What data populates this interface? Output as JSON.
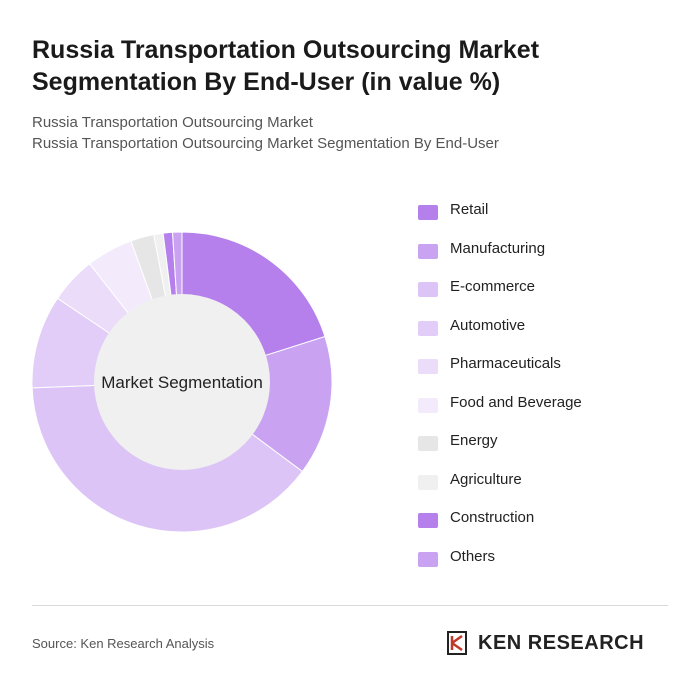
{
  "header": {
    "title": "Russia Transportation Outsourcing Market Segmentation By End-User (in value %)",
    "subtitle_line1": "Russia Transportation Outsourcing Market",
    "subtitle_line2": "Russia Transportation Outsourcing Market Segmentation By End-User"
  },
  "chart_data": {
    "type": "pie",
    "variant": "donut",
    "center_label": "Market Segmentation",
    "categories": [
      "Retail",
      "Manufacturing",
      "E-commerce",
      "Automotive",
      "Pharmaceuticals",
      "Food and Beverage",
      "Energy",
      "Agriculture",
      "Construction",
      "Others"
    ],
    "values": [
      20,
      15,
      39,
      10,
      5,
      5,
      2.5,
      1,
      1,
      1
    ],
    "colors": [
      "#b57fec",
      "#c9a2f1",
      "#dcc4f6",
      "#e1cdf7",
      "#ebdcf9",
      "#f3ebfb",
      "#e6e6e6",
      "#f0f0f0",
      "#b57fec",
      "#c9a2f1"
    ],
    "legend_position": "right"
  },
  "footer": {
    "source": "Source: Ken Research Analysis",
    "brand": "KEN RESEARCH"
  }
}
